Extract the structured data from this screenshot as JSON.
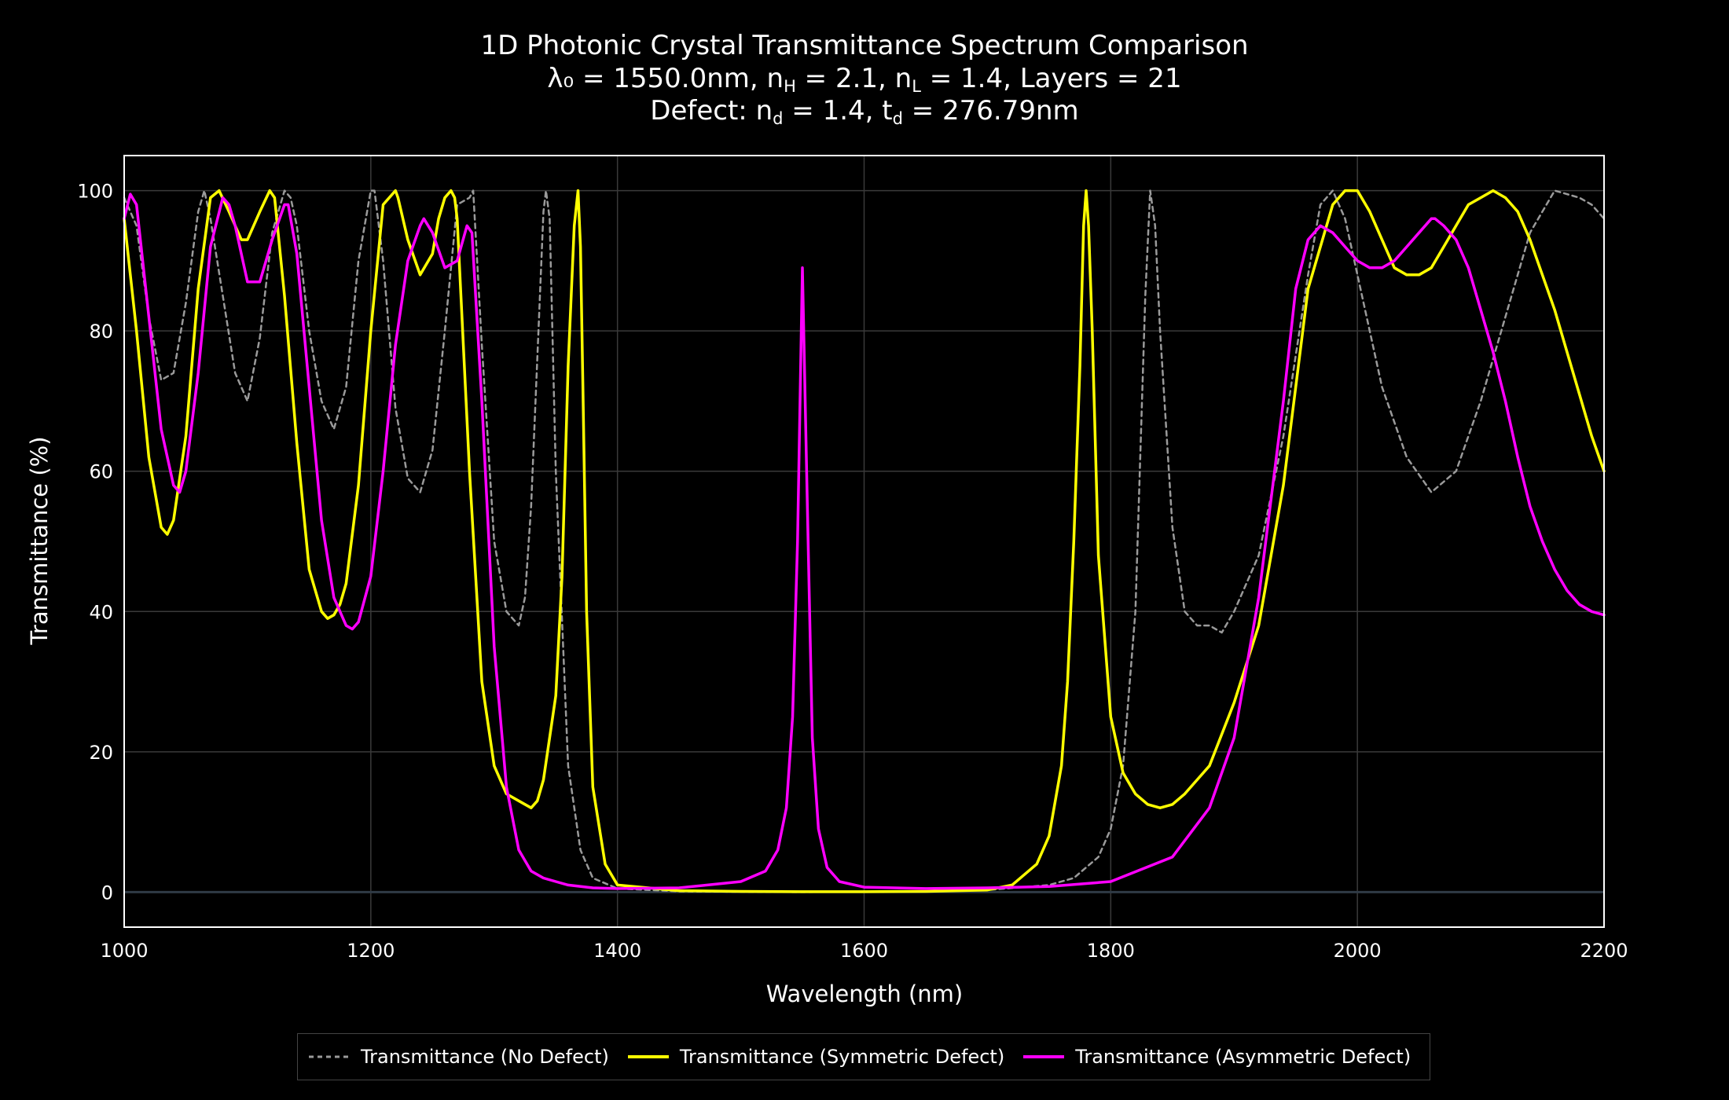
{
  "chart_data": {
    "type": "line",
    "title": "1D Photonic Crystal Transmittance Spectrum Comparison",
    "subtitle_line1": {
      "prefix": "λ₀ = 1550.0nm, n",
      "h_sub": "H",
      "mid1": " = 2.1, n",
      "l_sub": "L",
      "suffix": " = 1.4, Layers = 21"
    },
    "subtitle_line2": {
      "prefix": "Defect: n",
      "d_sub": "d",
      "mid": " = 1.4, t",
      "t_sub": "d",
      "suffix": " = 276.79nm"
    },
    "xlabel": "Wavelength (nm)",
    "ylabel": "Transmittance (%)",
    "xlim": [
      1000,
      2200
    ],
    "ylim": [
      -5,
      105
    ],
    "x_ticks": [
      1000,
      1200,
      1400,
      1600,
      1800,
      2000,
      2200
    ],
    "y_ticks": [
      0,
      20,
      40,
      60,
      80,
      100
    ],
    "grid": true,
    "legend_position": "bottom-center",
    "colors": {
      "background": "#000000",
      "grid": "#3a3a3a",
      "zero_line": "#2f3a45",
      "frame": "#ffffff"
    },
    "series": [
      {
        "name": "Transmittance (No Defect)",
        "color": "#9a9a9a",
        "dash": true,
        "x": [
          1000,
          1010,
          1020,
          1030,
          1040,
          1050,
          1060,
          1065,
          1070,
          1080,
          1090,
          1100,
          1110,
          1120,
          1130,
          1135,
          1140,
          1150,
          1160,
          1170,
          1180,
          1190,
          1200,
          1203,
          1210,
          1220,
          1230,
          1240,
          1250,
          1260,
          1270,
          1280,
          1283,
          1290,
          1300,
          1310,
          1320,
          1325,
          1330,
          1340,
          1342,
          1345,
          1350,
          1360,
          1370,
          1380,
          1400,
          1450,
          1500,
          1550,
          1600,
          1650,
          1700,
          1750,
          1770,
          1790,
          1800,
          1810,
          1820,
          1828,
          1832,
          1836,
          1840,
          1850,
          1860,
          1870,
          1880,
          1890,
          1900,
          1920,
          1940,
          1960,
          1970,
          1980,
          1990,
          2000,
          2020,
          2040,
          2060,
          2080,
          2100,
          2120,
          2140,
          2160,
          2180,
          2190,
          2200
        ],
        "y": [
          99,
          95,
          82,
          73,
          74,
          84,
          97,
          100,
          96,
          85,
          74,
          70,
          79,
          94,
          100,
          99,
          95,
          80,
          70,
          66,
          72,
          90,
          100,
          100,
          90,
          69,
          59,
          57,
          63,
          80,
          98,
          99,
          100,
          78,
          50,
          40,
          38,
          42,
          55,
          97,
          100,
          96,
          60,
          18,
          6,
          2,
          0.5,
          0.1,
          0.05,
          0,
          0.05,
          0.1,
          0.3,
          1,
          2,
          5,
          9,
          18,
          40,
          85,
          100,
          95,
          80,
          52,
          40,
          38,
          38,
          37,
          40,
          48,
          65,
          88,
          98,
          100,
          96,
          88,
          72,
          62,
          57,
          60,
          70,
          82,
          94,
          100,
          99,
          98,
          96
        ]
      },
      {
        "name": "Transmittance (Symmetric Defect)",
        "color": "#ffff00",
        "dash": false,
        "x": [
          1000,
          1010,
          1020,
          1030,
          1035,
          1040,
          1050,
          1060,
          1070,
          1077,
          1085,
          1095,
          1100,
          1110,
          1118,
          1122,
          1130,
          1140,
          1150,
          1160,
          1165,
          1170,
          1175,
          1180,
          1190,
          1200,
          1210,
          1220,
          1222,
          1230,
          1240,
          1250,
          1255,
          1260,
          1265,
          1268,
          1270,
          1280,
          1290,
          1300,
          1310,
          1320,
          1330,
          1335,
          1340,
          1350,
          1355,
          1360,
          1365,
          1368,
          1370,
          1372,
          1375,
          1380,
          1390,
          1400,
          1450,
          1500,
          1550,
          1600,
          1650,
          1700,
          1720,
          1740,
          1750,
          1760,
          1765,
          1770,
          1775,
          1778,
          1780,
          1782,
          1785,
          1790,
          1800,
          1810,
          1820,
          1830,
          1840,
          1850,
          1860,
          1870,
          1880,
          1900,
          1920,
          1940,
          1960,
          1980,
          1990,
          2000,
          2010,
          2020,
          2030,
          2040,
          2050,
          2060,
          2070,
          2080,
          2090,
          2100,
          2110,
          2120,
          2130,
          2140,
          2150,
          2160,
          2170,
          2180,
          2190,
          2200
        ],
        "y": [
          96,
          80,
          62,
          52,
          51,
          53,
          65,
          86,
          99,
          100,
          97,
          93,
          93,
          97,
          100,
          99,
          85,
          64,
          46,
          40,
          39,
          39.5,
          41,
          44,
          58,
          80,
          98,
          100,
          99,
          93,
          88,
          91,
          96,
          99,
          100,
          99,
          96,
          60,
          30,
          18,
          14,
          13,
          12,
          13,
          16,
          28,
          45,
          75,
          95,
          100,
          92,
          72,
          40,
          15,
          4,
          1,
          0.2,
          0.1,
          0.05,
          0.05,
          0.1,
          0.3,
          1,
          4,
          8,
          18,
          30,
          50,
          75,
          95,
          100,
          95,
          80,
          48,
          25,
          17,
          14,
          12.5,
          12,
          12.5,
          14,
          16,
          18,
          27,
          38,
          58,
          86,
          98,
          100,
          100,
          97,
          93,
          89,
          88,
          88,
          89,
          92,
          95,
          98,
          99,
          100,
          99,
          97,
          93,
          88,
          83,
          77,
          71,
          65,
          60
        ]
      },
      {
        "name": "Transmittance (Asymmetric Defect)",
        "color": "#ff00ff",
        "dash": false,
        "x": [
          1000,
          1005,
          1010,
          1020,
          1030,
          1040,
          1045,
          1050,
          1060,
          1070,
          1080,
          1085,
          1090,
          1100,
          1110,
          1115,
          1120,
          1130,
          1133,
          1140,
          1150,
          1160,
          1170,
          1180,
          1185,
          1190,
          1200,
          1210,
          1220,
          1230,
          1240,
          1243,
          1250,
          1260,
          1270,
          1278,
          1282,
          1290,
          1300,
          1310,
          1320,
          1330,
          1340,
          1350,
          1360,
          1380,
          1400,
          1450,
          1500,
          1520,
          1530,
          1537,
          1542,
          1546,
          1550,
          1554,
          1558,
          1563,
          1570,
          1580,
          1600,
          1650,
          1700,
          1750,
          1800,
          1850,
          1880,
          1900,
          1920,
          1940,
          1950,
          1960,
          1970,
          1980,
          1990,
          2000,
          2010,
          2020,
          2030,
          2040,
          2050,
          2060,
          2063,
          2070,
          2080,
          2090,
          2100,
          2110,
          2120,
          2130,
          2140,
          2150,
          2160,
          2170,
          2180,
          2190,
          2200
        ],
        "y": [
          96,
          99.5,
          98,
          82,
          66,
          58,
          57,
          60,
          74,
          92,
          99,
          98,
          95,
          87,
          87,
          90,
          93,
          98,
          98,
          91,
          72,
          53,
          42,
          38,
          37.5,
          38.5,
          45,
          60,
          78,
          90,
          95,
          96,
          94,
          89,
          90,
          95,
          94,
          70,
          35,
          15,
          6,
          3,
          2,
          1.5,
          1,
          0.6,
          0.5,
          0.6,
          1.5,
          3,
          6,
          12,
          25,
          50,
          89,
          55,
          22,
          9,
          3.5,
          1.5,
          0.7,
          0.5,
          0.6,
          0.8,
          1.5,
          5,
          12,
          22,
          42,
          70,
          86,
          93,
          95,
          94,
          92,
          90,
          89,
          89,
          90,
          92,
          94,
          96,
          96,
          95,
          93,
          89,
          83,
          77,
          70,
          62,
          55,
          50,
          46,
          43,
          41,
          40,
          39.5
        ]
      }
    ]
  }
}
